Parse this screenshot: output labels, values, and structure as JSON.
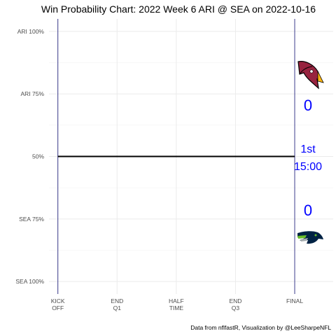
{
  "chart_data": {
    "type": "line",
    "title": "Win Probability Chart: 2022 Week 6 ARI @ SEA on 2022-10-16",
    "caption": "Data from nflfastR, Visualization by @LeeSharpeNFL",
    "xlabel": "",
    "ylabel": "",
    "x_ticks": [
      {
        "line1": "KICK",
        "line2": "OFF",
        "value": 0
      },
      {
        "line1": "END",
        "line2": "Q1",
        "value": 1
      },
      {
        "line1": "HALF",
        "line2": "TIME",
        "value": 2
      },
      {
        "line1": "END",
        "line2": "Q3",
        "value": 3
      },
      {
        "line1": "FINAL",
        "line2": "",
        "value": 4
      }
    ],
    "y_ticks": [
      {
        "label": "ARI 100%",
        "value": 1.0
      },
      {
        "label": "ARI 75%",
        "value": 0.75
      },
      {
        "label": "50%",
        "value": 0.5
      },
      {
        "label": "SEA 75%",
        "value": 0.25
      },
      {
        "label": "SEA 100%",
        "value": 0.0
      }
    ],
    "xlim": [
      -0.15,
      4.65
    ],
    "ylim": [
      -0.05,
      1.05
    ],
    "grid": true,
    "series": [
      {
        "x": [
          0,
          4
        ],
        "y": [
          0.5,
          0.5
        ],
        "color": "#000000"
      }
    ],
    "away_team": {
      "score": "0",
      "logo": "cardinals-logo",
      "color": "#97233F"
    },
    "home_team": {
      "score": "0",
      "logo": "seahawks-logo",
      "color": "#002244"
    },
    "game_status": {
      "quarter": "1st",
      "clock": "15:00"
    },
    "text_color": "#0000ff",
    "vertical_line_color": "#3c3c8c"
  }
}
